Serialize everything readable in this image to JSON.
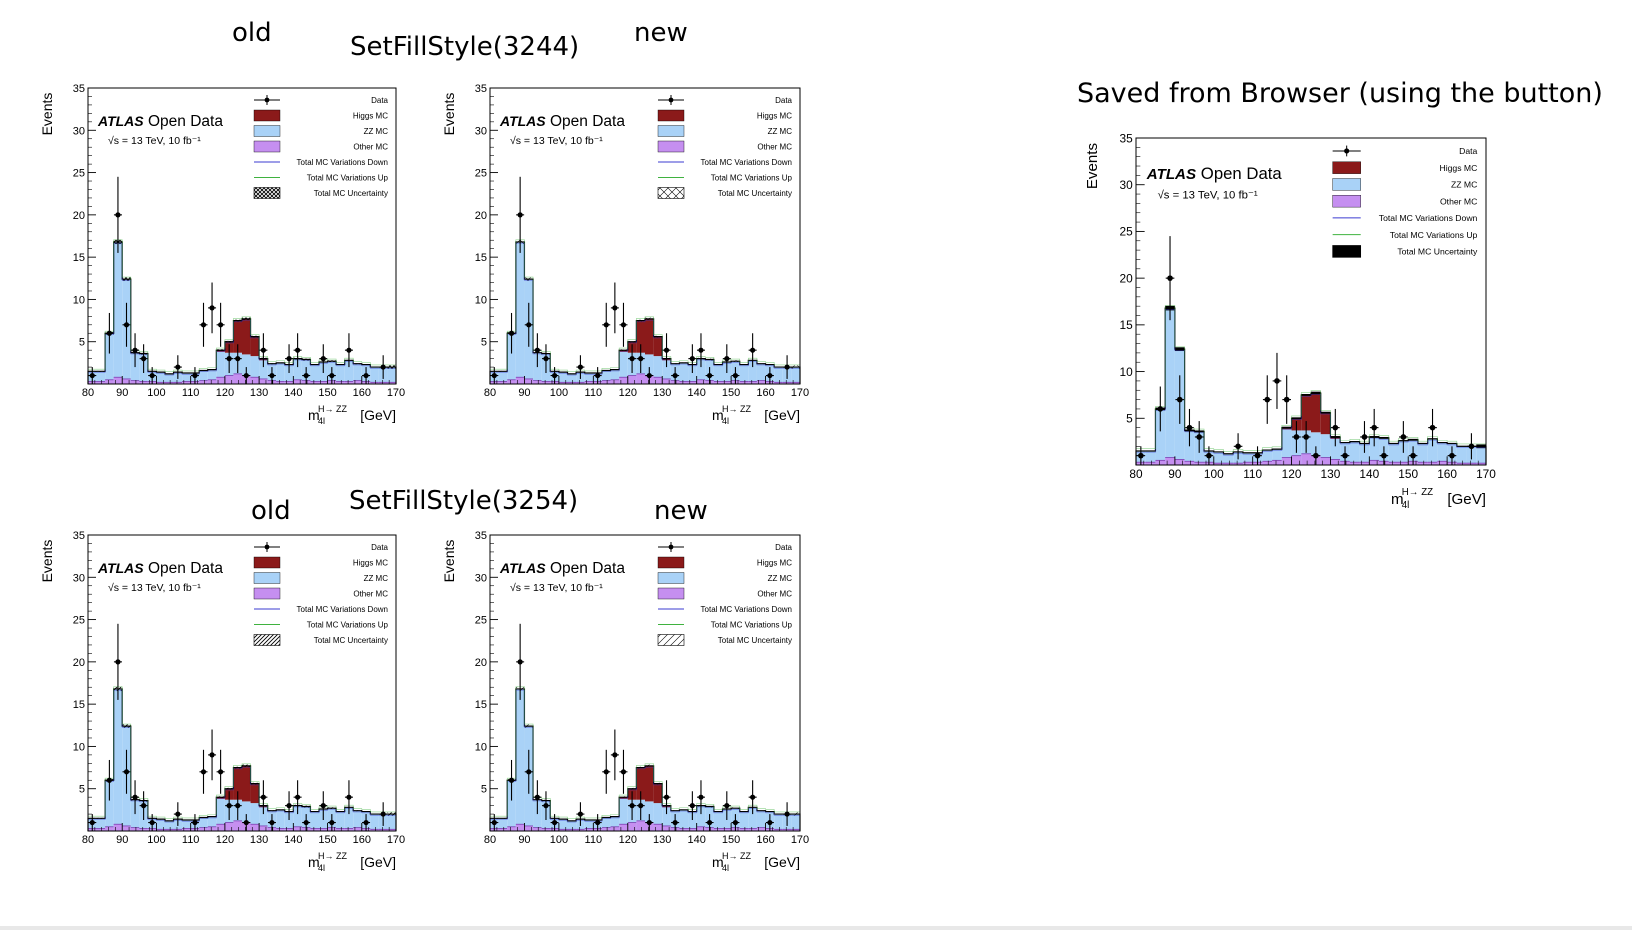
{
  "labels": {
    "old_top": "old",
    "new_top": "new",
    "style_top": "SetFillStyle(3244)",
    "old_bottom": "old",
    "new_bottom": "new",
    "style_bottom": "SetFillStyle(3254)",
    "browser": "Saved from Browser (using the button)"
  },
  "colors": {
    "data": "#000000",
    "higgs": "#8b1a1a",
    "zz": "#a9d2f7",
    "other": "#c58ff0",
    "var_down": "#3b3bd1",
    "var_up": "#3fb23f",
    "uncertainty": "#000000",
    "frame": "#000000"
  },
  "chart_data": [
    {
      "id": "top-old",
      "type": "bar",
      "title": "",
      "xlabel": "m",
      "xlabel_sup": "H→ ZZ",
      "xlabel_sub": "4l",
      "xlabel_unit": "[GeV]",
      "ylabel": "Events",
      "xlim": [
        80,
        170
      ],
      "ylim": [
        0,
        35
      ],
      "xticks": [
        80,
        90,
        100,
        110,
        120,
        130,
        140,
        150,
        160,
        170
      ],
      "yticks": [
        5,
        10,
        15,
        20,
        25,
        30,
        35
      ],
      "atlas": "ATLAS",
      "open_data": "Open Data",
      "energy": "√s = 13 TeV, 10 fb⁻¹",
      "uncertainty_style": "crosshatch",
      "legend": [
        "Data",
        "Higgs MC",
        "ZZ MC",
        "Other MC",
        "Total MC Variations Down",
        "Total MC Variations Up",
        "Total MC Uncertainty"
      ]
    },
    {
      "id": "top-new",
      "type": "bar",
      "title": "",
      "xlabel": "m",
      "xlabel_sup": "H→ ZZ",
      "xlabel_sub": "4l",
      "xlabel_unit": "[GeV]",
      "ylabel": "Events",
      "xlim": [
        80,
        170
      ],
      "ylim": [
        0,
        35
      ],
      "xticks": [
        80,
        90,
        100,
        110,
        120,
        130,
        140,
        150,
        160,
        170
      ],
      "yticks": [
        5,
        10,
        15,
        20,
        25,
        30,
        35
      ],
      "atlas": "ATLAS",
      "open_data": "Open Data",
      "energy": "√s = 13 TeV, 10 fb⁻¹",
      "uncertainty_style": "xcross",
      "legend": [
        "Data",
        "Higgs MC",
        "ZZ MC",
        "Other MC",
        "Total MC Variations Down",
        "Total MC Variations Up",
        "Total MC Uncertainty"
      ]
    },
    {
      "id": "bottom-old",
      "type": "bar",
      "title": "",
      "xlabel": "m",
      "xlabel_sup": "H→ ZZ",
      "xlabel_sub": "4l",
      "xlabel_unit": "[GeV]",
      "ylabel": "Events",
      "xlim": [
        80,
        170
      ],
      "ylim": [
        0,
        35
      ],
      "xticks": [
        80,
        90,
        100,
        110,
        120,
        130,
        140,
        150,
        160,
        170
      ],
      "yticks": [
        5,
        10,
        15,
        20,
        25,
        30,
        35
      ],
      "atlas": "ATLAS",
      "open_data": "Open Data",
      "energy": "√s = 13 TeV, 10 fb⁻¹",
      "uncertainty_style": "diagonal-dense",
      "legend": [
        "Data",
        "Higgs MC",
        "ZZ MC",
        "Other MC",
        "Total MC Variations Down",
        "Total MC Variations Up",
        "Total MC Uncertainty"
      ]
    },
    {
      "id": "bottom-new",
      "type": "bar",
      "title": "",
      "xlabel": "m",
      "xlabel_sup": "H→ ZZ",
      "xlabel_sub": "4l",
      "xlabel_unit": "[GeV]",
      "ylabel": "Events",
      "xlim": [
        80,
        170
      ],
      "ylim": [
        0,
        35
      ],
      "xticks": [
        80,
        90,
        100,
        110,
        120,
        130,
        140,
        150,
        160,
        170
      ],
      "yticks": [
        5,
        10,
        15,
        20,
        25,
        30,
        35
      ],
      "atlas": "ATLAS",
      "open_data": "Open Data",
      "energy": "√s = 13 TeV, 10 fb⁻¹",
      "uncertainty_style": "diagonal-sparse",
      "legend": [
        "Data",
        "Higgs MC",
        "ZZ MC",
        "Other MC",
        "Total MC Variations Down",
        "Total MC Variations Up",
        "Total MC Uncertainty"
      ]
    },
    {
      "id": "browser",
      "type": "bar",
      "title": "",
      "xlabel": "m",
      "xlabel_sup": "H→ ZZ",
      "xlabel_sub": "4l",
      "xlabel_unit": "[GeV]",
      "ylabel": "Events",
      "xlim": [
        80,
        170
      ],
      "ylim": [
        0,
        35
      ],
      "xticks": [
        80,
        90,
        100,
        110,
        120,
        130,
        140,
        150,
        160,
        170
      ],
      "yticks": [
        5,
        10,
        15,
        20,
        25,
        30,
        35
      ],
      "atlas": "ATLAS",
      "open_data": "Open Data",
      "energy": "√s = 13 TeV, 10 fb⁻¹",
      "uncertainty_style": "solid",
      "legend": [
        "Data",
        "Higgs MC",
        "ZZ MC",
        "Other MC",
        "Total MC Variations Down",
        "Total MC Variations Up",
        "Total MC Uncertainty"
      ]
    }
  ],
  "histogram": {
    "bin_edges": [
      80,
      82.5,
      85,
      87.5,
      90,
      92.5,
      95,
      97.5,
      100,
      102.5,
      105,
      107.5,
      110,
      112.5,
      115,
      117.5,
      120,
      122.5,
      125,
      127.5,
      130,
      132.5,
      135,
      137.5,
      140,
      142.5,
      145,
      147.5,
      150,
      152.5,
      155,
      157.5,
      160,
      162.5,
      165,
      167.5,
      170
    ],
    "zz_mc": [
      1.2,
      1.2,
      5.5,
      16.0,
      11.8,
      3.3,
      3.3,
      1.2,
      1.2,
      1.0,
      1.2,
      1.0,
      1.0,
      1.2,
      1.2,
      3.0,
      2.7,
      2.5,
      2.5,
      2.5,
      2.2,
      2.0,
      2.2,
      2.0,
      2.5,
      2.5,
      2.0,
      2.3,
      2.3,
      2.0,
      2.5,
      2.0,
      2.0,
      1.8,
      1.8,
      1.8
    ],
    "other_mc": [
      0.3,
      0.3,
      0.5,
      0.8,
      0.6,
      0.4,
      0.3,
      0.3,
      0.2,
      0.2,
      0.2,
      0.3,
      0.3,
      0.4,
      0.5,
      0.8,
      1.0,
      1.2,
      1.0,
      0.8,
      0.6,
      0.4,
      0.3,
      0.3,
      0.5,
      0.4,
      0.3,
      0.3,
      0.4,
      0.3,
      0.3,
      0.4,
      0.3,
      0.2,
      0.2,
      0.2
    ],
    "higgs_mc": [
      0,
      0,
      0,
      0,
      0,
      0,
      0,
      0,
      0,
      0,
      0,
      0,
      0,
      0,
      0,
      0.2,
      1.3,
      3.8,
      4.2,
      2.3,
      0.2,
      0,
      0,
      0,
      0,
      0,
      0,
      0,
      0,
      0,
      0,
      0,
      0,
      0,
      0,
      0
    ],
    "uncertainty": [
      0.1,
      0.1,
      0.3,
      0.5,
      0.4,
      0.2,
      0.2,
      0.1,
      0.1,
      0.1,
      0.1,
      0.1,
      0.1,
      0.1,
      0.1,
      0.2,
      0.2,
      0.2,
      0.3,
      0.2,
      0.2,
      0.1,
      0.1,
      0.1,
      0.2,
      0.2,
      0.1,
      0.1,
      0.2,
      0.1,
      0.1,
      0.1,
      0.1,
      0.1,
      0.1,
      0.4
    ],
    "data_points": [
      {
        "x": 81.25,
        "y": 1,
        "err": 1.0
      },
      {
        "x": 86.25,
        "y": 6,
        "err": 2.4
      },
      {
        "x": 88.75,
        "y": 20,
        "err": 4.5
      },
      {
        "x": 91.25,
        "y": 7,
        "err": 2.6
      },
      {
        "x": 93.75,
        "y": 4,
        "err": 2.0
      },
      {
        "x": 96.25,
        "y": 3,
        "err": 1.7
      },
      {
        "x": 98.75,
        "y": 1,
        "err": 1.0
      },
      {
        "x": 106.25,
        "y": 2,
        "err": 1.4
      },
      {
        "x": 111.25,
        "y": 1,
        "err": 1.0
      },
      {
        "x": 113.75,
        "y": 7,
        "err": 2.6
      },
      {
        "x": 116.25,
        "y": 9,
        "err": 3.0
      },
      {
        "x": 118.75,
        "y": 7,
        "err": 2.6
      },
      {
        "x": 121.25,
        "y": 3,
        "err": 1.7
      },
      {
        "x": 123.75,
        "y": 3,
        "err": 1.7
      },
      {
        "x": 126.25,
        "y": 1,
        "err": 1.0
      },
      {
        "x": 131.25,
        "y": 4,
        "err": 2.0
      },
      {
        "x": 133.75,
        "y": 1,
        "err": 1.0
      },
      {
        "x": 138.75,
        "y": 3,
        "err": 1.7
      },
      {
        "x": 141.25,
        "y": 4,
        "err": 2.0
      },
      {
        "x": 143.75,
        "y": 1,
        "err": 1.0
      },
      {
        "x": 148.75,
        "y": 3,
        "err": 1.7
      },
      {
        "x": 151.25,
        "y": 1,
        "err": 1.0
      },
      {
        "x": 156.25,
        "y": 4,
        "err": 2.0
      },
      {
        "x": 161.25,
        "y": 1,
        "err": 1.0
      },
      {
        "x": 166.25,
        "y": 2,
        "err": 1.4
      }
    ]
  }
}
